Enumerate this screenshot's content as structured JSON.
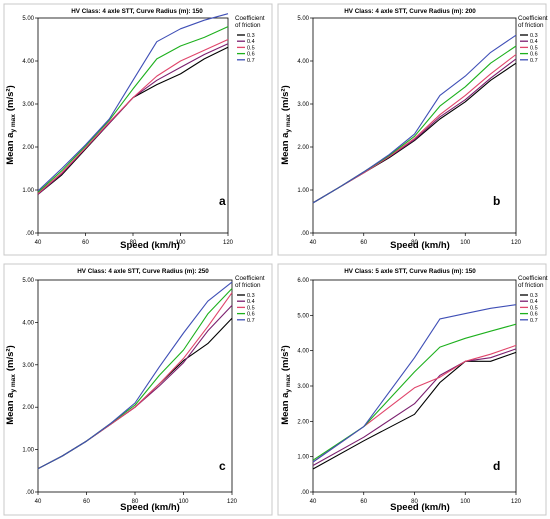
{
  "legend_title": [
    "Coefficient",
    "of friction"
  ],
  "chart_data": [
    {
      "type": "line",
      "title": "HV Class: 4 axle STT, Curve Radius (m): 150",
      "panel_label": "a",
      "xlabel": "Speed (km/h)",
      "ylabel_main": "Mean a",
      "ylabel_sub": "y max",
      "ylabel_unit": "(m/s²)",
      "xlim": [
        40,
        120
      ],
      "ylim": [
        0,
        5
      ],
      "x_ticks": [
        "40",
        "60",
        "80",
        "100",
        "120"
      ],
      "y_ticks": [
        ".00",
        "1.00",
        "2.00",
        "3.00",
        "4.00",
        "5.00"
      ],
      "x": [
        40,
        50,
        60,
        70,
        80,
        90,
        100,
        110,
        120
      ],
      "series": [
        {
          "name": "0.3",
          "color": "#000000",
          "values": [
            0.9,
            1.35,
            1.95,
            2.55,
            3.15,
            3.45,
            3.7,
            4.05,
            4.32
          ]
        },
        {
          "name": "0.4",
          "color": "#7b1f6e",
          "values": [
            0.9,
            1.38,
            1.97,
            2.55,
            3.15,
            3.55,
            3.85,
            4.15,
            4.4
          ]
        },
        {
          "name": "0.5",
          "color": "#e0456b",
          "values": [
            0.92,
            1.4,
            1.98,
            2.58,
            3.15,
            3.65,
            4.0,
            4.25,
            4.5
          ]
        },
        {
          "name": "0.6",
          "color": "#1db01d",
          "values": [
            0.95,
            1.45,
            2.02,
            2.62,
            3.35,
            4.05,
            4.35,
            4.55,
            4.8
          ]
        },
        {
          "name": "0.7",
          "color": "#3f4fb6",
          "values": [
            0.98,
            1.5,
            2.05,
            2.65,
            3.55,
            4.45,
            4.75,
            4.95,
            5.1
          ]
        }
      ]
    },
    {
      "type": "line",
      "title": "HV Class: 4 axle STT, Curve Radius (m): 200",
      "panel_label": "b",
      "xlabel": "Speed (km/h)",
      "ylabel_main": "Mean a",
      "ylabel_sub": "y max",
      "ylabel_unit": "(m/s²)",
      "xlim": [
        40,
        120
      ],
      "ylim": [
        0,
        5
      ],
      "x_ticks": [
        "40",
        "60",
        "80",
        "100",
        "120"
      ],
      "y_ticks": [
        ".00",
        "1.00",
        "2.00",
        "3.00",
        "4.00",
        "5.00"
      ],
      "x": [
        40,
        50,
        60,
        70,
        80,
        90,
        100,
        110,
        120
      ],
      "series": [
        {
          "name": "0.3",
          "color": "#000000",
          "values": [
            0.7,
            1.05,
            1.4,
            1.75,
            2.15,
            2.65,
            3.05,
            3.55,
            3.95
          ]
        },
        {
          "name": "0.4",
          "color": "#7b1f6e",
          "values": [
            0.7,
            1.05,
            1.4,
            1.77,
            2.17,
            2.7,
            3.1,
            3.6,
            4.05
          ]
        },
        {
          "name": "0.5",
          "color": "#e0456b",
          "values": [
            0.7,
            1.05,
            1.4,
            1.78,
            2.2,
            2.75,
            3.2,
            3.7,
            4.15
          ]
        },
        {
          "name": "0.6",
          "color": "#1db01d",
          "values": [
            0.7,
            1.05,
            1.42,
            1.8,
            2.25,
            2.95,
            3.4,
            3.95,
            4.35
          ]
        },
        {
          "name": "0.7",
          "color": "#3f4fb6",
          "values": [
            0.7,
            1.05,
            1.42,
            1.82,
            2.3,
            3.2,
            3.65,
            4.2,
            4.6
          ]
        }
      ]
    },
    {
      "type": "line",
      "title": "HV Class: 4 axle STT, Curve Radius (m): 250",
      "panel_label": "c",
      "xlabel": "Speed (km/h)",
      "ylabel_main": "Mean a",
      "ylabel_sub": "y max",
      "ylabel_unit": "(m/s²)",
      "xlim": [
        40,
        120
      ],
      "ylim": [
        0,
        5
      ],
      "x_ticks": [
        "40",
        "60",
        "80",
        "100",
        "120"
      ],
      "y_ticks": [
        ".00",
        "1.00",
        "2.00",
        "3.00",
        "4.00",
        "5.00"
      ],
      "x": [
        40,
        50,
        60,
        70,
        80,
        90,
        100,
        110,
        120
      ],
      "series": [
        {
          "name": "0.3",
          "color": "#000000",
          "values": [
            0.55,
            0.85,
            1.2,
            1.6,
            2.0,
            2.55,
            3.1,
            3.5,
            4.1
          ]
        },
        {
          "name": "0.4",
          "color": "#7b1f6e",
          "values": [
            0.55,
            0.85,
            1.2,
            1.6,
            2.0,
            2.5,
            3.05,
            3.8,
            4.4
          ]
        },
        {
          "name": "0.5",
          "color": "#e0456b",
          "values": [
            0.55,
            0.85,
            1.2,
            1.6,
            2.0,
            2.55,
            3.15,
            3.9,
            4.7
          ]
        },
        {
          "name": "0.6",
          "color": "#1db01d",
          "values": [
            0.55,
            0.85,
            1.2,
            1.62,
            2.05,
            2.75,
            3.35,
            4.2,
            4.8
          ]
        },
        {
          "name": "0.7",
          "color": "#3f4fb6",
          "values": [
            0.55,
            0.85,
            1.2,
            1.62,
            2.1,
            2.95,
            3.75,
            4.5,
            4.95
          ]
        }
      ]
    },
    {
      "type": "line",
      "title": "HV Class: 5 axle STT, Curve Radius (m): 150",
      "panel_label": "d",
      "xlabel": "Speed (km/h)",
      "ylabel_main": "Mean a",
      "ylabel_sub": "y max",
      "ylabel_unit": "(m/s²)",
      "xlim": [
        40,
        120
      ],
      "ylim": [
        0,
        6
      ],
      "x_ticks": [
        "40",
        "60",
        "80",
        "100",
        "120"
      ],
      "y_ticks": [
        ".00",
        "1.00",
        "2.00",
        "3.00",
        "4.00",
        "5.00",
        "6.00"
      ],
      "x": [
        40,
        60,
        80,
        90,
        100,
        110,
        120
      ],
      "series": [
        {
          "name": "0.3",
          "color": "#000000",
          "values": [
            0.65,
            1.45,
            2.2,
            3.1,
            3.7,
            3.7,
            3.95
          ]
        },
        {
          "name": "0.4",
          "color": "#7b1f6e",
          "values": [
            0.75,
            1.55,
            2.5,
            3.3,
            3.7,
            3.8,
            4.05
          ]
        },
        {
          "name": "0.5",
          "color": "#e0456b",
          "values": [
            0.85,
            1.85,
            2.95,
            3.25,
            3.7,
            3.9,
            4.15
          ]
        },
        {
          "name": "0.6",
          "color": "#1db01d",
          "values": [
            0.9,
            1.85,
            3.4,
            4.1,
            4.35,
            4.55,
            4.75
          ]
        },
        {
          "name": "0.7",
          "color": "#3f4fb6",
          "values": [
            0.85,
            1.85,
            3.8,
            4.9,
            5.05,
            5.2,
            5.3
          ]
        }
      ]
    }
  ]
}
